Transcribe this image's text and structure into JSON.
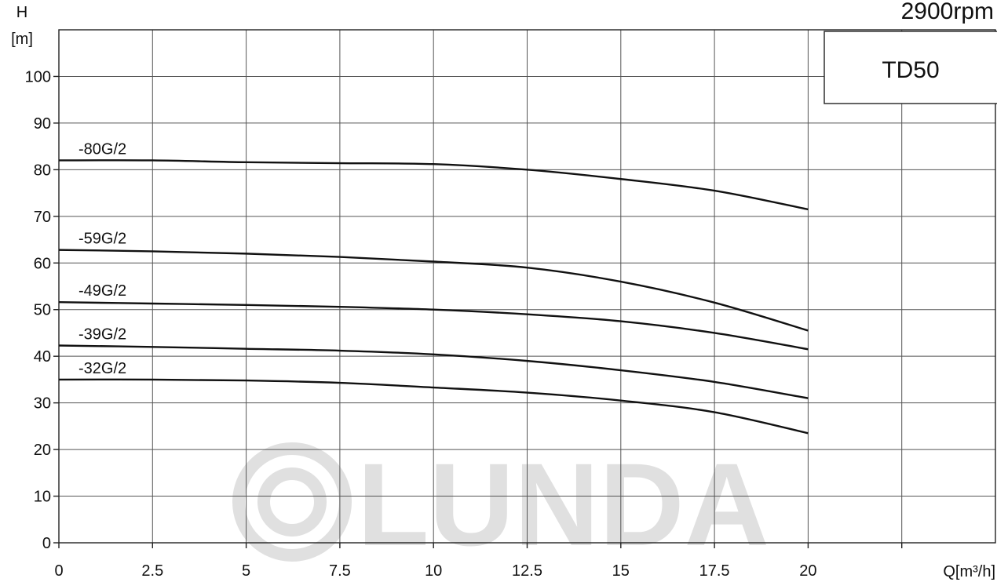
{
  "chart_data": {
    "type": "line",
    "title": "",
    "speed_label": "2900rpm",
    "model_label": "TD50",
    "ylabel_top": "H",
    "ylabel_unit": "[m]",
    "xlabel_unit": "Q[m³/h]",
    "xlim": [
      0,
      25
    ],
    "ylim": [
      0,
      110
    ],
    "x_ticks": [
      "0",
      "2.5",
      "5",
      "7.5",
      "10",
      "12.5",
      "15",
      "17.5",
      "20"
    ],
    "x_tick_values": [
      0,
      2.5,
      5,
      7.5,
      10,
      12.5,
      15,
      17.5,
      20
    ],
    "y_ticks": [
      "0",
      "10",
      "20",
      "30",
      "40",
      "50",
      "60",
      "70",
      "80",
      "90",
      "100"
    ],
    "y_tick_values": [
      0,
      10,
      20,
      30,
      40,
      50,
      60,
      70,
      80,
      90,
      100
    ],
    "grid": true,
    "watermark": "LUNDA",
    "series": [
      {
        "name": "-80G/2",
        "x": [
          0,
          2.5,
          5,
          7.5,
          10,
          12.5,
          15,
          17.5,
          20
        ],
        "y": [
          82,
          82,
          81.6,
          81.4,
          81.2,
          80,
          78,
          75.5,
          71.5
        ]
      },
      {
        "name": "-59G/2",
        "x": [
          0,
          2.5,
          5,
          7.5,
          10,
          12.5,
          15,
          17.5,
          20
        ],
        "y": [
          62.8,
          62.5,
          62,
          61.3,
          60.3,
          59,
          56,
          51.5,
          45.5
        ]
      },
      {
        "name": "-49G/2",
        "x": [
          0,
          2.5,
          5,
          7.5,
          10,
          12.5,
          15,
          17.5,
          20
        ],
        "y": [
          51.6,
          51.3,
          51,
          50.6,
          50,
          49,
          47.5,
          45,
          41.5
        ]
      },
      {
        "name": "-39G/2",
        "x": [
          0,
          2.5,
          5,
          7.5,
          10,
          12.5,
          15,
          17.5,
          20
        ],
        "y": [
          42.3,
          42,
          41.6,
          41.2,
          40.4,
          39,
          37,
          34.5,
          31
        ]
      },
      {
        "name": "-32G/2",
        "x": [
          0,
          2.5,
          5,
          7.5,
          10,
          12.5,
          15,
          17.5,
          20
        ],
        "y": [
          35,
          35,
          34.8,
          34.3,
          33.3,
          32.2,
          30.5,
          28,
          23.5
        ]
      }
    ]
  }
}
